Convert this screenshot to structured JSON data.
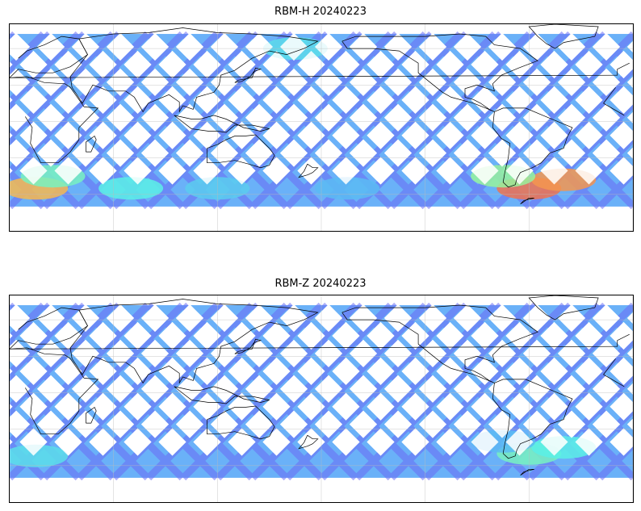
{
  "panels": [
    {
      "title": "RBM-H 20240223",
      "colors": {
        "track": "#6a6cf5",
        "track_light": "#5aa9f7"
      },
      "hotspots": [
        {
          "lon": -60,
          "lat": -55,
          "level": 0.95
        },
        {
          "lon": -40,
          "lat": -48,
          "level": 0.9
        },
        {
          "lon": -75,
          "lat": -45,
          "level": 0.6
        },
        {
          "lon": 15,
          "lat": -55,
          "level": 0.85
        },
        {
          "lon": 25,
          "lat": -45,
          "level": 0.55
        },
        {
          "lon": 70,
          "lat": -55,
          "level": 0.5
        },
        {
          "lon": 120,
          "lat": -55,
          "level": 0.4
        },
        {
          "lon": -165,
          "lat": -55,
          "level": 0.35
        },
        {
          "lon": 165,
          "lat": 60,
          "level": 0.45
        }
      ]
    },
    {
      "title": "RBM-Z 20240223",
      "colors": {
        "track": "#6a6cf5",
        "track_light": "#5aa9f7"
      },
      "hotspots": [
        {
          "lon": -60,
          "lat": -50,
          "level": 0.55
        },
        {
          "lon": -40,
          "lat": -45,
          "level": 0.5
        },
        {
          "lon": 15,
          "lat": -52,
          "level": 0.45
        },
        {
          "lon": -75,
          "lat": -40,
          "level": 0.35
        }
      ]
    }
  ]
}
